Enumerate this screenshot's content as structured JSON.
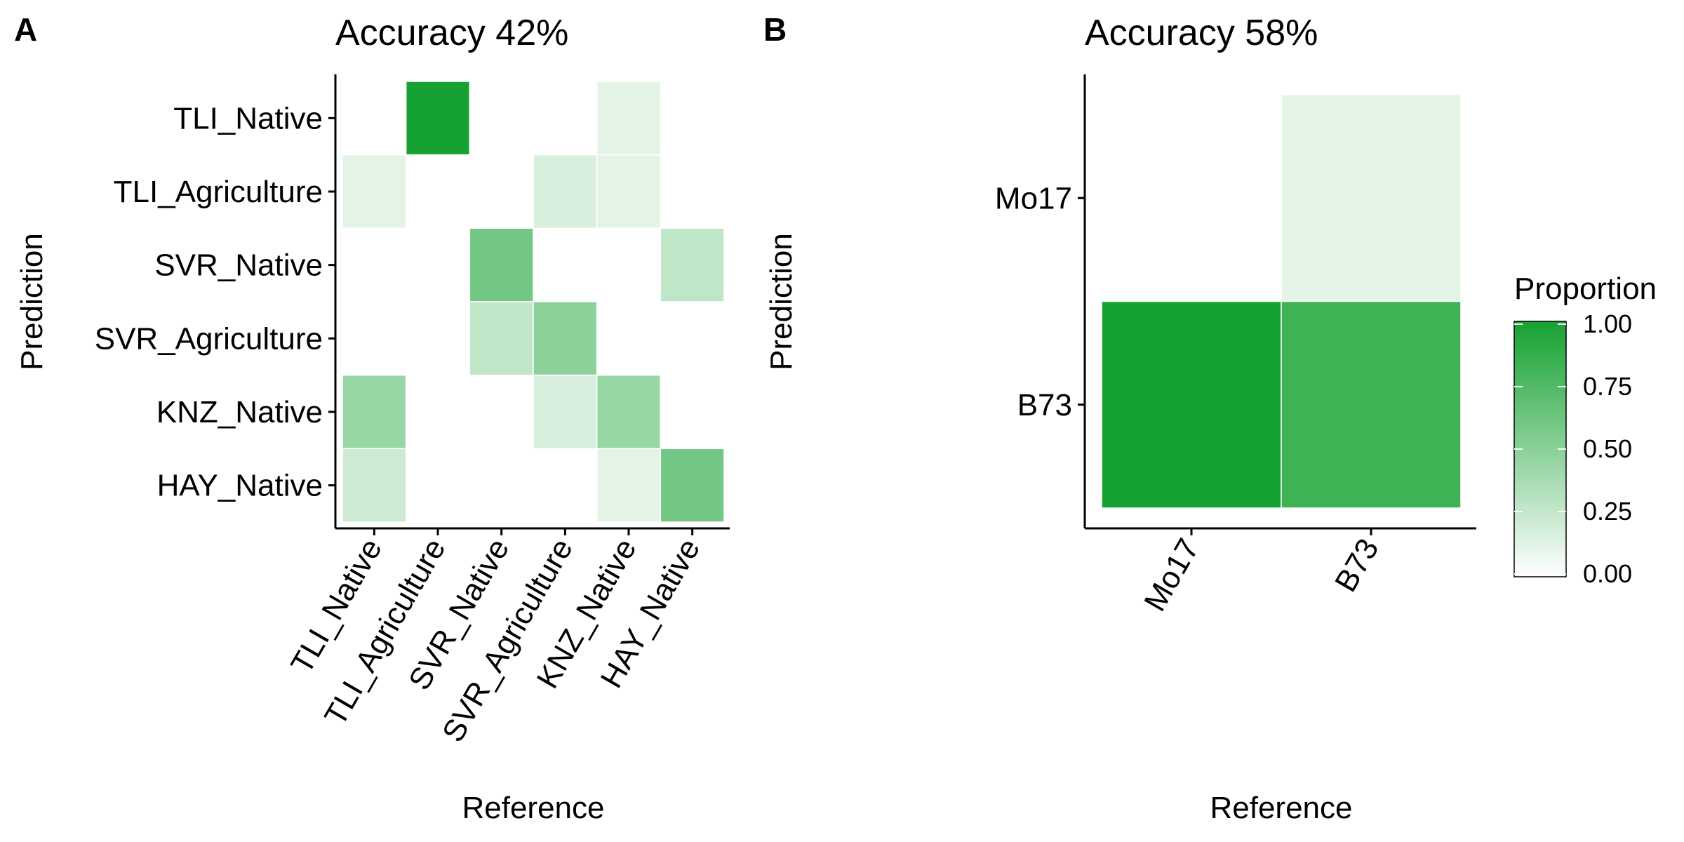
{
  "chart_data": [
    {
      "panel_label": "A",
      "type": "heatmap",
      "title": "Accuracy 42%",
      "xlabel": "Reference",
      "ylabel": "Prediction",
      "x_categories": [
        "TLI_Native",
        "TLI_Agriculture",
        "SVR_Native",
        "SVR_Agriculture",
        "KNZ_Native",
        "HAY_Native"
      ],
      "y_categories": [
        "TLI_Native",
        "TLI_Agriculture",
        "SVR_Native",
        "SVR_Agriculture",
        "KNZ_Native",
        "HAY_Native"
      ],
      "values": [
        [
          0.0,
          1.0,
          0.0,
          0.0,
          0.12,
          0.0
        ],
        [
          0.12,
          0.0,
          0.0,
          0.17,
          0.12,
          0.0
        ],
        [
          0.0,
          0.0,
          0.6,
          0.0,
          0.0,
          0.27
        ],
        [
          0.0,
          0.0,
          0.27,
          0.5,
          0.0,
          0.0
        ],
        [
          0.44,
          0.0,
          0.0,
          0.17,
          0.44,
          0.0
        ],
        [
          0.22,
          0.0,
          0.0,
          0.0,
          0.12,
          0.6
        ]
      ]
    },
    {
      "panel_label": "B",
      "type": "heatmap",
      "title": "Accuracy 58%",
      "xlabel": "Reference",
      "ylabel": "Prediction",
      "x_categories": [
        "Mo17",
        "B73"
      ],
      "y_categories": [
        "Mo17",
        "B73"
      ],
      "values": [
        [
          0.0,
          0.12
        ],
        [
          1.0,
          0.83
        ]
      ]
    }
  ],
  "legend": {
    "title": "Proportion",
    "ticks": [
      "1.00",
      "0.75",
      "0.50",
      "0.25",
      "0.00"
    ],
    "low_color": "#ffffff",
    "high_color": "#16a232",
    "range": [
      0,
      1
    ]
  }
}
